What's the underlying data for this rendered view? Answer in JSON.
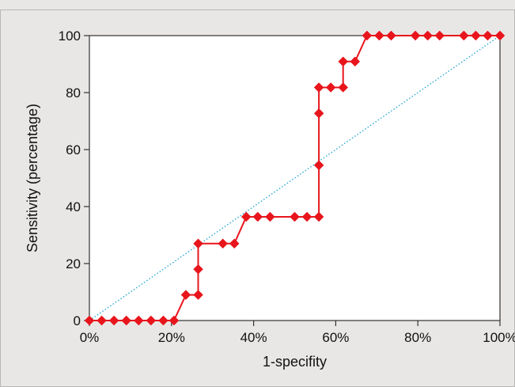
{
  "chart_data": {
    "type": "line",
    "title": "",
    "xlabel": "1-specifity",
    "ylabel": "Sensitivity (percentage)",
    "xlim": [
      0,
      100
    ],
    "ylim": [
      0,
      100
    ],
    "xticks": [
      0,
      20,
      40,
      60,
      80,
      100
    ],
    "xtick_labels": [
      "0%",
      "20%",
      "40%",
      "60%",
      "80%",
      "100%"
    ],
    "yticks": [
      0,
      20,
      40,
      60,
      80,
      100
    ],
    "ytick_labels": [
      "0",
      "20",
      "40",
      "60",
      "80",
      "100"
    ],
    "grid": false,
    "legend": "none",
    "series": [
      {
        "style": "line-with-diamond-markers",
        "color": "#e8151c",
        "points": [
          [
            0,
            0
          ],
          [
            3,
            0
          ],
          [
            6,
            0
          ],
          [
            9,
            0
          ],
          [
            12,
            0
          ],
          [
            15,
            0
          ],
          [
            18,
            0
          ],
          [
            20.6,
            0
          ],
          [
            23.5,
            9
          ],
          [
            26.5,
            9
          ],
          [
            26.5,
            18
          ],
          [
            26.5,
            27
          ],
          [
            32.5,
            27
          ],
          [
            35.3,
            27
          ],
          [
            38.2,
            36.4
          ],
          [
            41,
            36.4
          ],
          [
            44,
            36.4
          ],
          [
            50,
            36.4
          ],
          [
            53,
            36.4
          ],
          [
            55.9,
            36.4
          ],
          [
            55.9,
            54.5
          ],
          [
            55.9,
            72.7
          ],
          [
            55.9,
            81.8
          ],
          [
            58.8,
            81.8
          ],
          [
            61.8,
            81.8
          ],
          [
            61.8,
            90.9
          ],
          [
            64.7,
            90.9
          ],
          [
            67.6,
            100
          ],
          [
            70.6,
            100
          ],
          [
            73.5,
            100
          ],
          [
            79.4,
            100
          ],
          [
            82.4,
            100
          ],
          [
            85.3,
            100
          ],
          [
            91.2,
            100
          ],
          [
            94.1,
            100
          ],
          [
            97,
            100
          ],
          [
            100,
            100
          ]
        ]
      },
      {
        "style": "dotted-diagonal",
        "color": "#2aa7d6",
        "points": [
          [
            0,
            0
          ],
          [
            100,
            100
          ]
        ]
      }
    ]
  }
}
